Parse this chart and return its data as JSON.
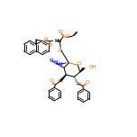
{
  "bg_color": "#ffffff",
  "bond_color": "#000000",
  "nitrogen_color": "#0000ff",
  "oxygen_color": "#ff6600",
  "figsize": [
    1.52,
    1.52
  ],
  "dpi": 100,
  "xlim": [
    0,
    152
  ],
  "ylim": [
    0,
    152
  ]
}
